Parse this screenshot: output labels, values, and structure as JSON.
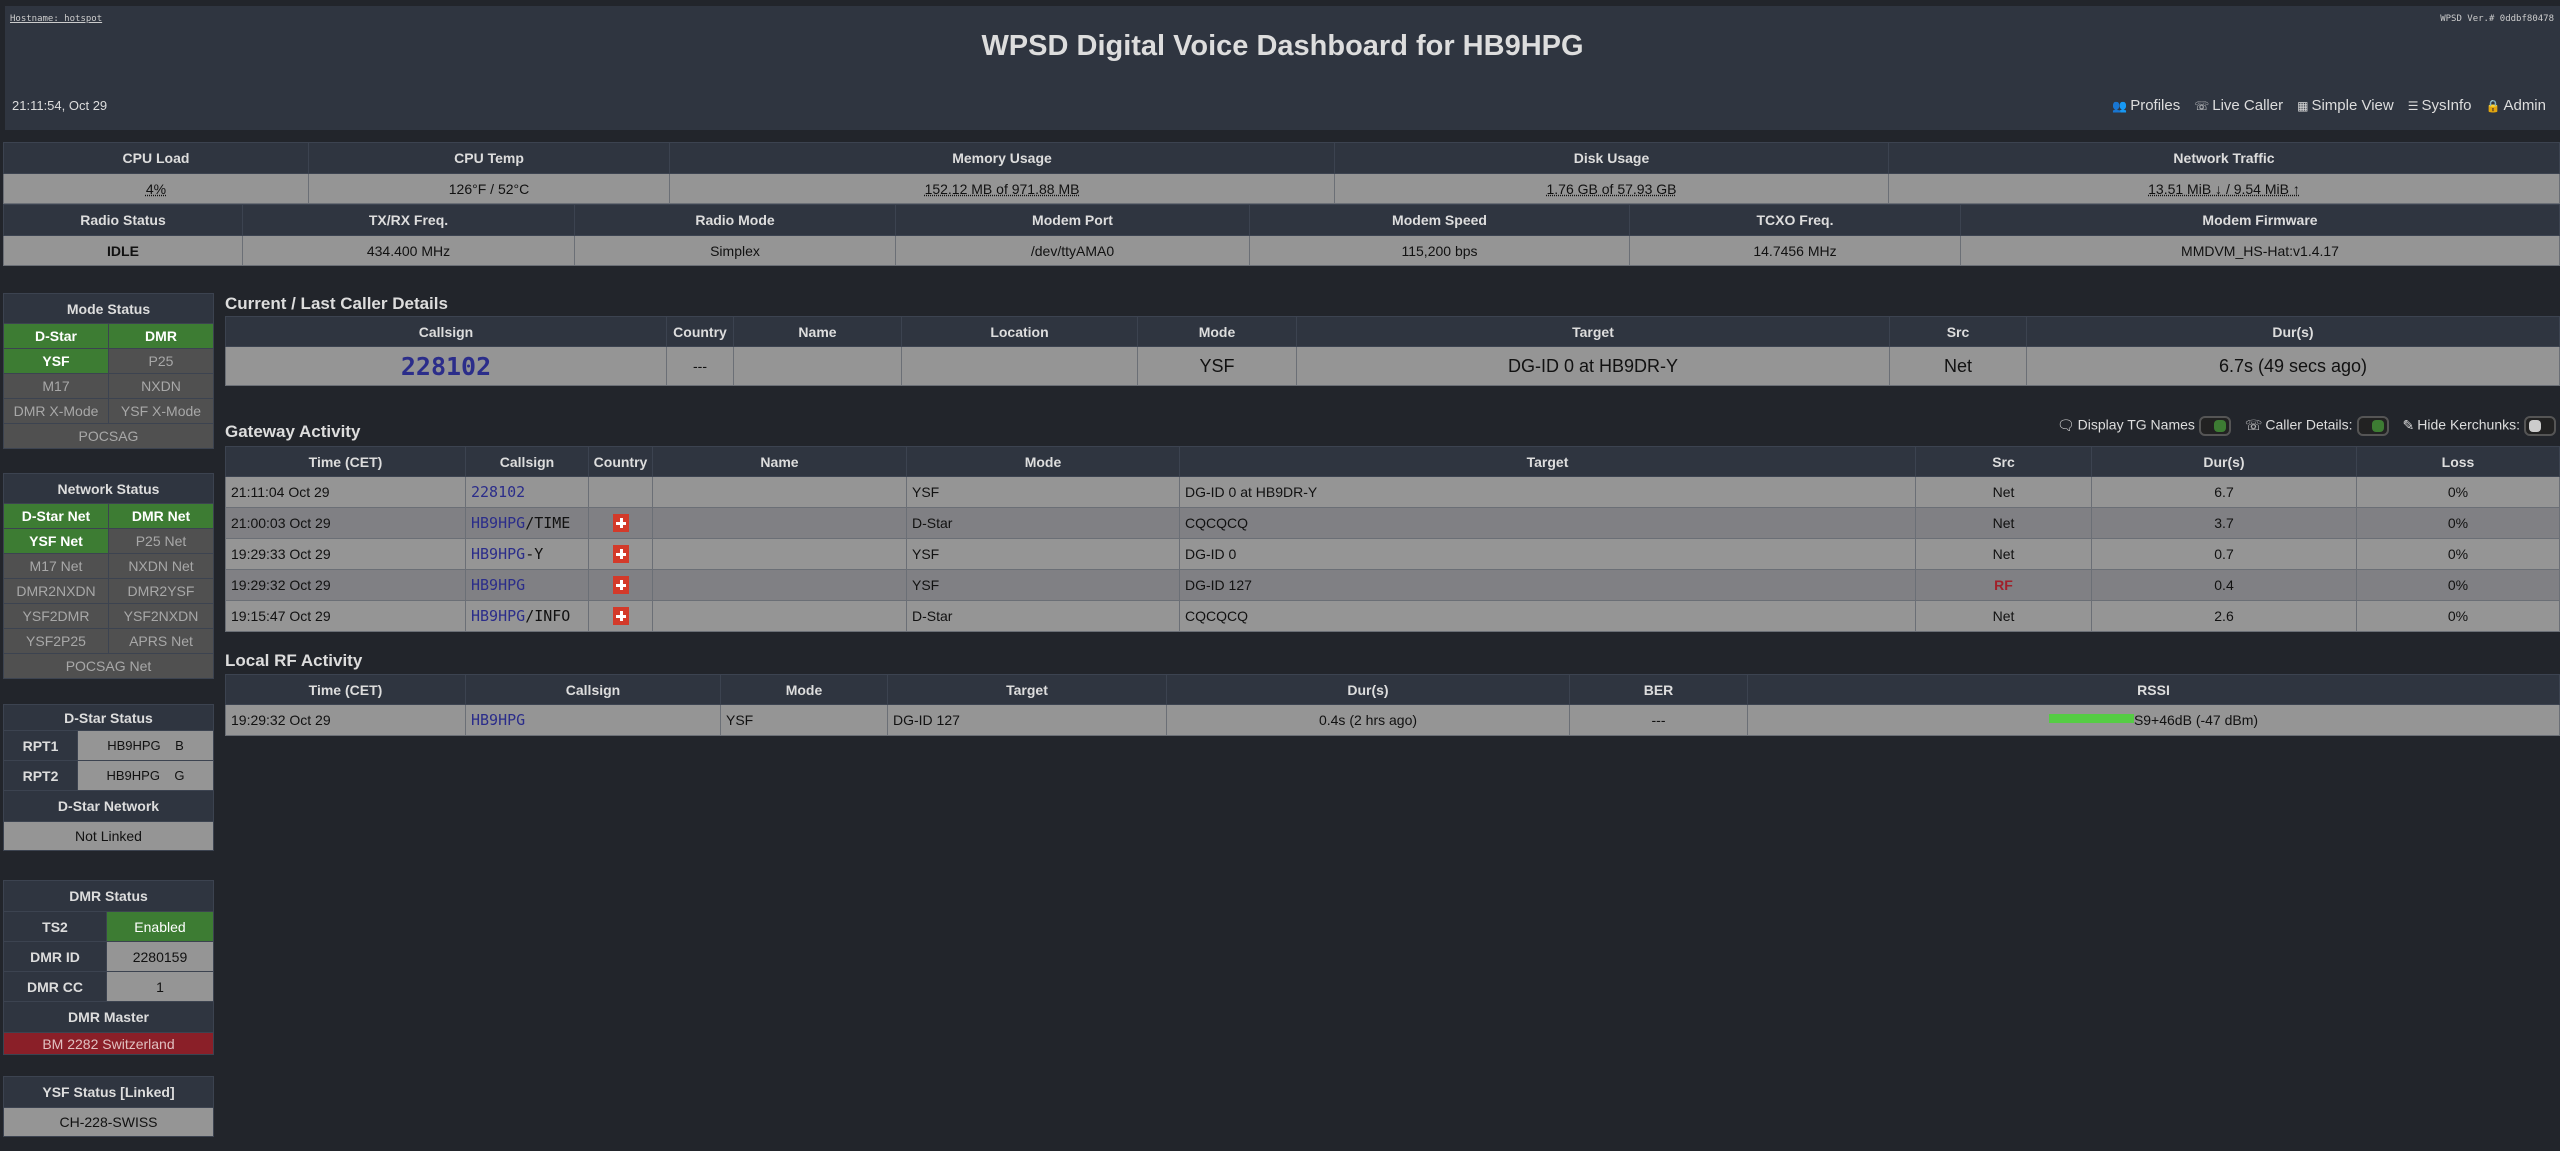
{
  "header": {
    "hostname": "Hostname: hotspot",
    "version": "WPSD Ver.# 0ddbf80478",
    "title": "WPSD Digital Voice Dashboard for HB9HPG",
    "clock": "21:11:54, Oct 29",
    "nav": [
      {
        "icon": "profiles-icon",
        "glyph": "👥",
        "label": "Profiles"
      },
      {
        "icon": "phone-icon",
        "glyph": "☏",
        "label": "Live Caller"
      },
      {
        "icon": "grid-icon",
        "glyph": "▦",
        "label": "Simple View"
      },
      {
        "icon": "list-icon",
        "glyph": "☰",
        "label": "SysInfo"
      },
      {
        "icon": "lock-icon",
        "glyph": "🔒",
        "label": "Admin"
      }
    ]
  },
  "sysinfo": {
    "headers": [
      "CPU Load",
      "CPU Temp",
      "Memory Usage",
      "Disk Usage",
      "Network Traffic"
    ],
    "values": [
      "4%",
      "126°F / 52°C",
      "152.12 MB of 971.88 MB",
      "1.76 GB of 57.93 GB",
      "13.51 MiB ↓ / 9.54 MiB ↑"
    ]
  },
  "radio": {
    "headers": [
      "Radio Status",
      "TX/RX Freq.",
      "Radio Mode",
      "Modem Port",
      "Modem Speed",
      "TCXO Freq.",
      "Modem Firmware"
    ],
    "values": [
      "IDLE",
      "434.400 MHz",
      "Simplex",
      "/dev/ttyAMA0",
      "115,200 bps",
      "14.7456 MHz",
      "MMDVM_HS-Hat:v1.4.17"
    ]
  },
  "mode_status": {
    "title": "Mode Status",
    "items": [
      {
        "label": "D-Star",
        "active": true
      },
      {
        "label": "DMR",
        "active": true
      },
      {
        "label": "YSF",
        "active": true
      },
      {
        "label": "P25",
        "active": false
      },
      {
        "label": "M17",
        "active": false
      },
      {
        "label": "NXDN",
        "active": false
      },
      {
        "label": "DMR X-Mode",
        "active": false
      },
      {
        "label": "YSF X-Mode",
        "active": false
      },
      {
        "label": "POCSAG",
        "active": false
      }
    ]
  },
  "network_status": {
    "title": "Network Status",
    "items": [
      {
        "label": "D-Star Net",
        "active": true
      },
      {
        "label": "DMR Net",
        "active": true
      },
      {
        "label": "YSF Net",
        "active": true
      },
      {
        "label": "P25 Net",
        "active": false
      },
      {
        "label": "M17 Net",
        "active": false
      },
      {
        "label": "NXDN Net",
        "active": false
      },
      {
        "label": "DMR2NXDN",
        "active": false
      },
      {
        "label": "DMR2YSF",
        "active": false
      },
      {
        "label": "YSF2DMR",
        "active": false
      },
      {
        "label": "YSF2NXDN",
        "active": false
      },
      {
        "label": "YSF2P25",
        "active": false
      },
      {
        "label": "APRS Net",
        "active": false
      },
      {
        "label": "POCSAG Net",
        "active": false
      }
    ]
  },
  "dstar": {
    "title": "D-Star Status",
    "rpt1_label": "RPT1",
    "rpt1": "HB9HPG    B",
    "rpt2_label": "RPT2",
    "rpt2": "HB9HPG    G",
    "network_title": "D-Star Network",
    "network": "Not Linked"
  },
  "dmr": {
    "title": "DMR Status",
    "ts2_label": "TS2",
    "ts2": "Enabled",
    "id_label": "DMR ID",
    "id": "2280159",
    "cc_label": "DMR CC",
    "cc": "1",
    "master_title": "DMR Master",
    "master": "BM 2282 Switzerland"
  },
  "ysf": {
    "title": "YSF Status [Linked]",
    "value": "CH-228-SWISS"
  },
  "current": {
    "title": "Current / Last Caller Details",
    "headers": [
      "Callsign",
      "Country",
      "Name",
      "Location",
      "Mode",
      "Target",
      "Src",
      "Dur(s)"
    ],
    "row": {
      "callsign": "228102",
      "country": "---",
      "name": "",
      "location": "",
      "mode": "YSF",
      "target": "DG-ID 0 at HB9DR-Y",
      "src": "Net",
      "dur": "6.7s (49 secs ago)"
    }
  },
  "gateway": {
    "title": "Gateway Activity",
    "toggles": [
      {
        "icon": "chat-icon",
        "label": "Display TG Names",
        "on": true
      },
      {
        "icon": "phone-icon",
        "label": "Caller Details:",
        "on": true
      },
      {
        "icon": "mic-off-icon",
        "label": "Hide Kerchunks:",
        "on": false
      }
    ],
    "headers": [
      "Time (CET)",
      "Callsign",
      "Country",
      "Name",
      "Mode",
      "Target",
      "Src",
      "Dur(s)",
      "Loss"
    ],
    "rows": [
      {
        "time": "21:11:04 Oct 29",
        "call": "228102",
        "suffix": "",
        "flag": false,
        "name": "",
        "mode": "YSF",
        "target": "DG-ID 0 at HB9DR-Y",
        "src": "Net",
        "dur": "6.7",
        "loss": "0%"
      },
      {
        "time": "21:00:03 Oct 29",
        "call": "HB9HPG",
        "suffix": "/TIME",
        "flag": true,
        "name": "",
        "mode": "D-Star",
        "target": "CQCQCQ",
        "src": "Net",
        "dur": "3.7",
        "loss": "0%"
      },
      {
        "time": "19:29:33 Oct 29",
        "call": "HB9HPG",
        "suffix": "-Y",
        "flag": true,
        "name": "",
        "mode": "YSF",
        "target": "DG-ID 0",
        "src": "Net",
        "dur": "0.7",
        "loss": "0%"
      },
      {
        "time": "19:29:32 Oct 29",
        "call": "HB9HPG",
        "suffix": "",
        "flag": true,
        "name": "",
        "mode": "YSF",
        "target": "DG-ID 127",
        "src": "RF",
        "dur": "0.4",
        "loss": "0%"
      },
      {
        "time": "19:15:47 Oct 29",
        "call": "HB9HPG",
        "suffix": "/INFO",
        "flag": true,
        "name": "",
        "mode": "D-Star",
        "target": "CQCQCQ",
        "src": "Net",
        "dur": "2.6",
        "loss": "0%"
      }
    ]
  },
  "local_rf": {
    "title": "Local RF Activity",
    "headers": [
      "Time (CET)",
      "Callsign",
      "Mode",
      "Target",
      "Dur(s)",
      "BER",
      "RSSI"
    ],
    "rows": [
      {
        "time": "19:29:32 Oct 29",
        "call": "HB9HPG",
        "mode": "YSF",
        "target": "DG-ID 127",
        "dur": "0.4s (2 hrs ago)",
        "ber": "---",
        "rssi": "S9+46dB (-47 dBm)",
        "rssi_level": 1.0
      }
    ]
  },
  "colors": {
    "active": "#3d7c33",
    "inactive": "#505050",
    "master": "#8a1f28",
    "rf_src": "#a0202a",
    "rssi_bar": "#55cc44"
  }
}
